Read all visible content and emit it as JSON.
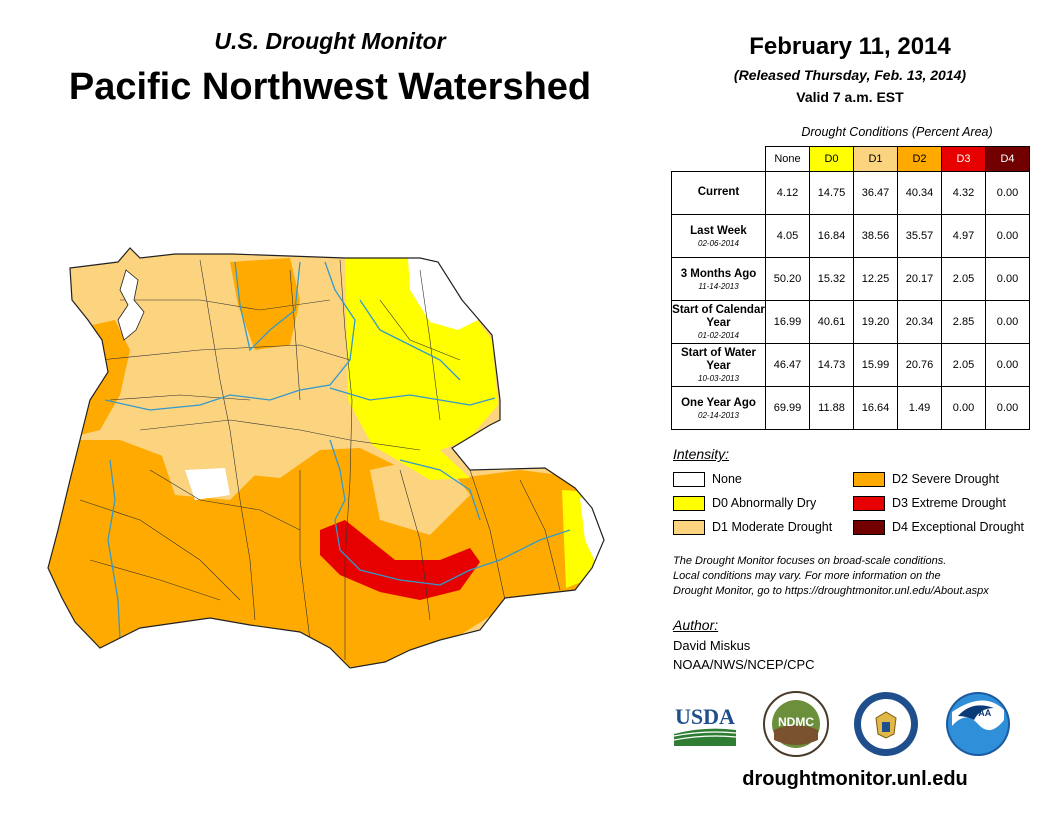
{
  "header": {
    "subtitle": "U.S. Drought Monitor",
    "title": "Pacific Northwest Watershed",
    "date": "February 11, 2014",
    "released": "(Released Thursday, Feb. 13, 2014)",
    "valid": "Valid 7 a.m. EST"
  },
  "conditions": {
    "caption": "Drought Conditions (Percent Area)",
    "columns": [
      {
        "label": "None",
        "color": "#ffffff",
        "text_color": "#000000"
      },
      {
        "label": "D0",
        "color": "#ffff00",
        "text_color": "#000000"
      },
      {
        "label": "D1",
        "color": "#fcd37f",
        "text_color": "#000000"
      },
      {
        "label": "D2",
        "color": "#ffaa00",
        "text_color": "#000000"
      },
      {
        "label": "D3",
        "color": "#e60000",
        "text_color": "#ffffff"
      },
      {
        "label": "D4",
        "color": "#730000",
        "text_color": "#ffffff"
      }
    ],
    "rows": [
      {
        "label": "Current",
        "sub": "",
        "values": [
          "4.12",
          "14.75",
          "36.47",
          "40.34",
          "4.32",
          "0.00"
        ]
      },
      {
        "label": "Last Week",
        "sub": "02-06-2014",
        "values": [
          "4.05",
          "16.84",
          "38.56",
          "35.57",
          "4.97",
          "0.00"
        ]
      },
      {
        "label": "3 Months Ago",
        "sub": "11-14-2013",
        "values": [
          "50.20",
          "15.32",
          "12.25",
          "20.17",
          "2.05",
          "0.00"
        ]
      },
      {
        "label": "Start of Calendar Year",
        "sub": "01-02-2014",
        "values": [
          "16.99",
          "40.61",
          "19.20",
          "20.34",
          "2.85",
          "0.00"
        ]
      },
      {
        "label": "Start of Water Year",
        "sub": "10-03-2013",
        "values": [
          "46.47",
          "14.73",
          "15.99",
          "20.76",
          "2.05",
          "0.00"
        ]
      },
      {
        "label": "One Year Ago",
        "sub": "02-14-2013",
        "values": [
          "69.99",
          "11.88",
          "16.64",
          "1.49",
          "0.00",
          "0.00"
        ]
      }
    ]
  },
  "legend": {
    "heading": "Intensity:",
    "items": [
      {
        "label": "None",
        "color": "#ffffff"
      },
      {
        "label": "D0 Abnormally Dry",
        "color": "#ffff00"
      },
      {
        "label": "D1 Moderate Drought",
        "color": "#fcd37f"
      },
      {
        "label": "D2 Severe Drought",
        "color": "#ffaa00"
      },
      {
        "label": "D3 Extreme Drought",
        "color": "#e60000"
      },
      {
        "label": "D4 Exceptional Drought",
        "color": "#730000"
      }
    ]
  },
  "note": {
    "line1": "The Drought Monitor focuses on broad-scale conditions.",
    "line2": "Local conditions may vary. For more information on the",
    "line3": "Drought Monitor, go to https://droughtmonitor.unl.edu/About.aspx"
  },
  "author": {
    "heading": "Author:",
    "name": "David Miskus",
    "org": "NOAA/NWS/NCEP/CPC"
  },
  "logos": {
    "usda": "USDA",
    "ndmc": "NDMC",
    "noaa": "NOAA"
  },
  "footer": {
    "url": "droughtmonitor.unl.edu"
  }
}
